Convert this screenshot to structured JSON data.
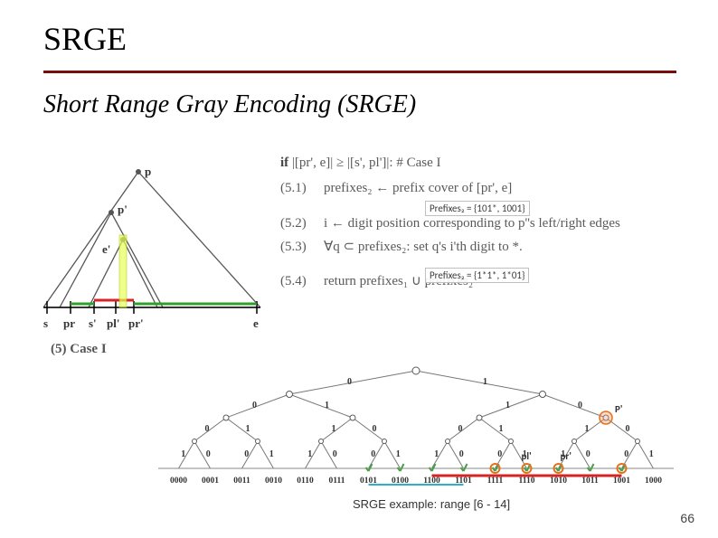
{
  "title": "SRGE",
  "subtitle": "Short Range Gray Encoding (SRGE)",
  "algo": {
    "header_pre": "if ",
    "header_cond": "|[pr', e]| ≥ |[s', pl']|:",
    "header_post": " # Case I",
    "steps": [
      {
        "n": "(5.1)",
        "body": "prefixes₂ ← prefix cover of [pr', e]"
      },
      {
        "n": "(5.2)",
        "body": "i ← digit position corresponding to p'​'s left/right edges"
      },
      {
        "n": "(5.3)",
        "body": "∀q ⊂ prefixes₂: set q's i'th digit to *."
      },
      {
        "n": "(5.4)",
        "body": "return prefixes₁ ∪ prefixes₂"
      }
    ],
    "ann1": "Prefixes₂ = {101*, 1001}",
    "ann2": "Prefixes₂ = {1*1*, 1*01}"
  },
  "geom_caption": "(5)  Case I",
  "tree": {
    "leaves": [
      "0000",
      "0001",
      "0011",
      "0010",
      "0110",
      "0111",
      "0101",
      "0100",
      "1100",
      "1101",
      "1111",
      "1110",
      "1010",
      "1011",
      "1001",
      "1000"
    ],
    "edge": [
      "0",
      "1",
      "0",
      "1",
      "1",
      "0",
      "0",
      "1",
      "1",
      "0",
      "0",
      "1",
      "1",
      "0",
      "1",
      "0",
      "0",
      "1",
      "1",
      "0",
      "0",
      "1",
      "1",
      "0",
      "0",
      "1",
      "1",
      "0",
      "0",
      "1"
    ],
    "labels": {
      "P": "P'",
      "pl": "pl'",
      "pr": "pr'",
      "S": "S'"
    },
    "colors": {
      "node_fill": "#ffffff",
      "node_stroke": "#5a5a5a",
      "leaf": "#555555",
      "highlight_fill": "#ff9966",
      "highlight_stroke": "#e2711d",
      "tick": "#49a049",
      "red": "#d62424",
      "grid": "#777"
    },
    "circled": [
      10,
      11,
      12,
      14
    ]
  },
  "caption": "SRGE example: range [6 - 14]",
  "pagenum": "66"
}
